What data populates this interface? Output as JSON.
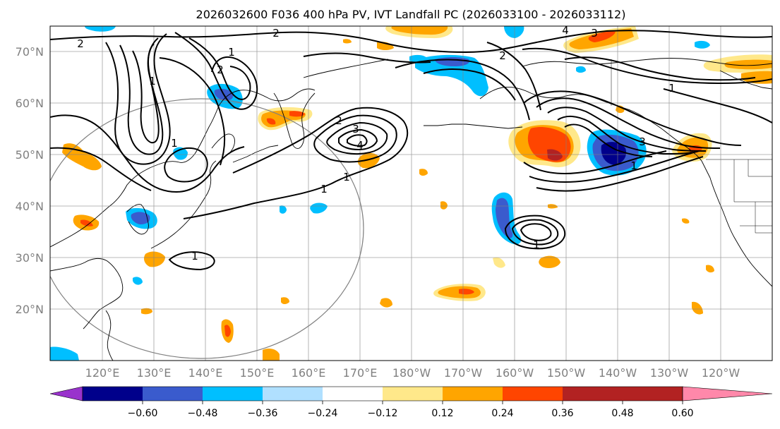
{
  "map": {
    "title": "2026032600 F036 400 hPa PV, IVT Landfall PC (2026033100 - 2026033112)",
    "lat_labels": [
      "70°N",
      "60°N",
      "50°N",
      "40°N",
      "30°N",
      "20°N"
    ],
    "lon_labels": [
      "120°E",
      "130°E",
      "140°E",
      "150°E",
      "160°E",
      "170°E",
      "180°W",
      "170°W",
      "160°W",
      "150°W",
      "140°W",
      "130°W",
      "120°W"
    ],
    "contour_labels": [
      "2",
      "2",
      "1",
      "1",
      "2",
      "1",
      "2",
      "3",
      "4",
      "1",
      "1",
      "1",
      "2",
      "4",
      "3",
      "1",
      "3",
      "1",
      "1"
    ],
    "colorbar": {
      "ticks": [
        "−0.60",
        "−0.48",
        "−0.36",
        "−0.24",
        "−0.12",
        "0.12",
        "0.24",
        "0.36",
        "0.48",
        "0.60"
      ],
      "colors": [
        "#9932cc",
        "#00008b",
        "#3a5bcd",
        "#00bfff",
        "#b0e0ff",
        "#ffffff",
        "#ffe88a",
        "#ffa500",
        "#ff4500",
        "#b22222",
        "#ff88aa"
      ]
    },
    "fill_colors": {
      "yellow": "#ffe88a",
      "orange": "#ffa500",
      "red": "#ff4500",
      "darkred": "#b22222",
      "lightblue": "#b0e0ff",
      "cyan": "#00bfff",
      "blue": "#3a5bcd",
      "navy": "#00008b"
    }
  }
}
